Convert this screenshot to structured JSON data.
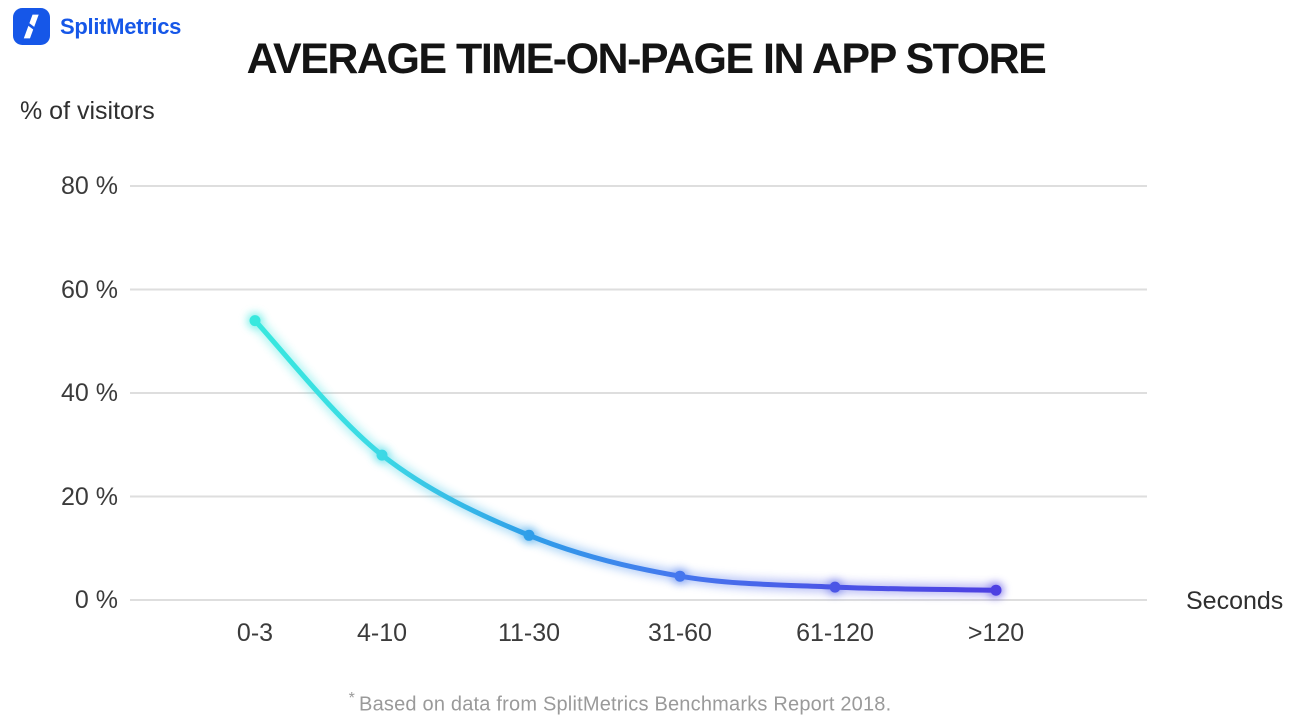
{
  "header": {
    "brand": "SplitMetrics",
    "title": "AVERAGE TIME-ON-PAGE IN APP STORE"
  },
  "chart_data": {
    "type": "line",
    "title": "AVERAGE TIME-ON-PAGE IN APP STORE",
    "categories": [
      "0-3",
      "4-10",
      "11-30",
      "31-60",
      "61-120",
      ">120"
    ],
    "values": [
      54,
      28,
      12.5,
      4.6,
      2.5,
      1.9
    ],
    "series_name": "% of visitors",
    "xlabel": "Seconds",
    "ylabel": "% of visitors",
    "ytick_values": [
      80,
      60,
      40,
      20,
      0
    ],
    "ytick_labels": [
      "80 %",
      "60 %",
      "40 %",
      "20 %",
      "0 %"
    ],
    "ylim": [
      0,
      80
    ],
    "grid": true,
    "legend": false,
    "gradient_stops": [
      {
        "offset": "0%",
        "color": "#38e8de"
      },
      {
        "offset": "17%",
        "color": "#3cd9e5"
      },
      {
        "offset": "37%",
        "color": "#2f9ee9"
      },
      {
        "offset": "57%",
        "color": "#4577ee"
      },
      {
        "offset": "78%",
        "color": "#4b55e6"
      },
      {
        "offset": "100%",
        "color": "#4d40e2"
      }
    ]
  },
  "colors": {
    "brand_blue": "#1657e8",
    "line_start": "#38e8de",
    "line_mid": "#2f9ee9",
    "line_end": "#4d40e2",
    "grid": "#dedede",
    "axis_text": "#3b3b3b",
    "title_text": "#141414",
    "footnote_text": "#9a9a9a"
  },
  "footnote": {
    "marker": "*",
    "text": "Based on data from SplitMetrics Benchmarks Report 2018."
  }
}
